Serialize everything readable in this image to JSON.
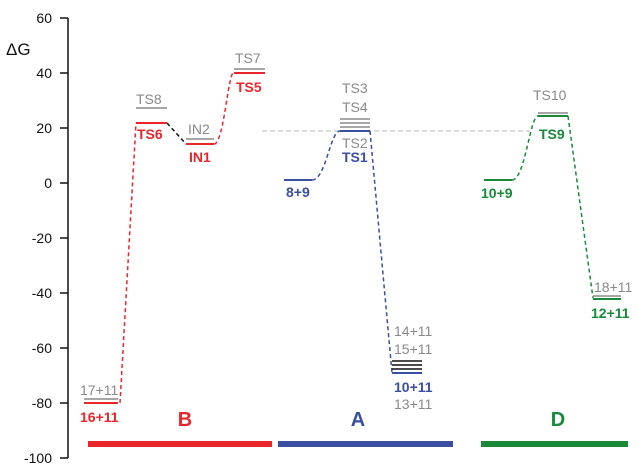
{
  "colors": {
    "red": "#e8262c",
    "blue": "#3b4ea2",
    "green": "#188a3a",
    "gray": "#8a8a8a",
    "black": "#111111",
    "ref": "#b8b8b8"
  },
  "y_axis": {
    "label": "ΔG",
    "ticks": [
      "60",
      "40",
      "20",
      "0",
      "-20",
      "-40",
      "-60",
      "-80",
      "-100"
    ]
  },
  "sections": {
    "B": "B",
    "A": "A",
    "D": "D"
  },
  "labels": {
    "ts8": "TS8",
    "ts6": "TS6",
    "in2": "IN2",
    "in1": "IN1",
    "ts7": "TS7",
    "ts5": "TS5",
    "ts3": "TS3",
    "ts4": "TS4",
    "ts2": "TS2",
    "ts1": "TS1",
    "r_8_9": "8+9",
    "p_14_11": "14+11",
    "p_15_11": "15+11",
    "p_10_11": "10+11",
    "p_13_11": "13+11",
    "p_17_11": "17+11",
    "p_16_11": "16+11",
    "ts10": "TS10",
    "ts9": "TS9",
    "r_10_9": "10+9",
    "p_18_11": "18+11",
    "p_12_11": "12+11"
  }
}
